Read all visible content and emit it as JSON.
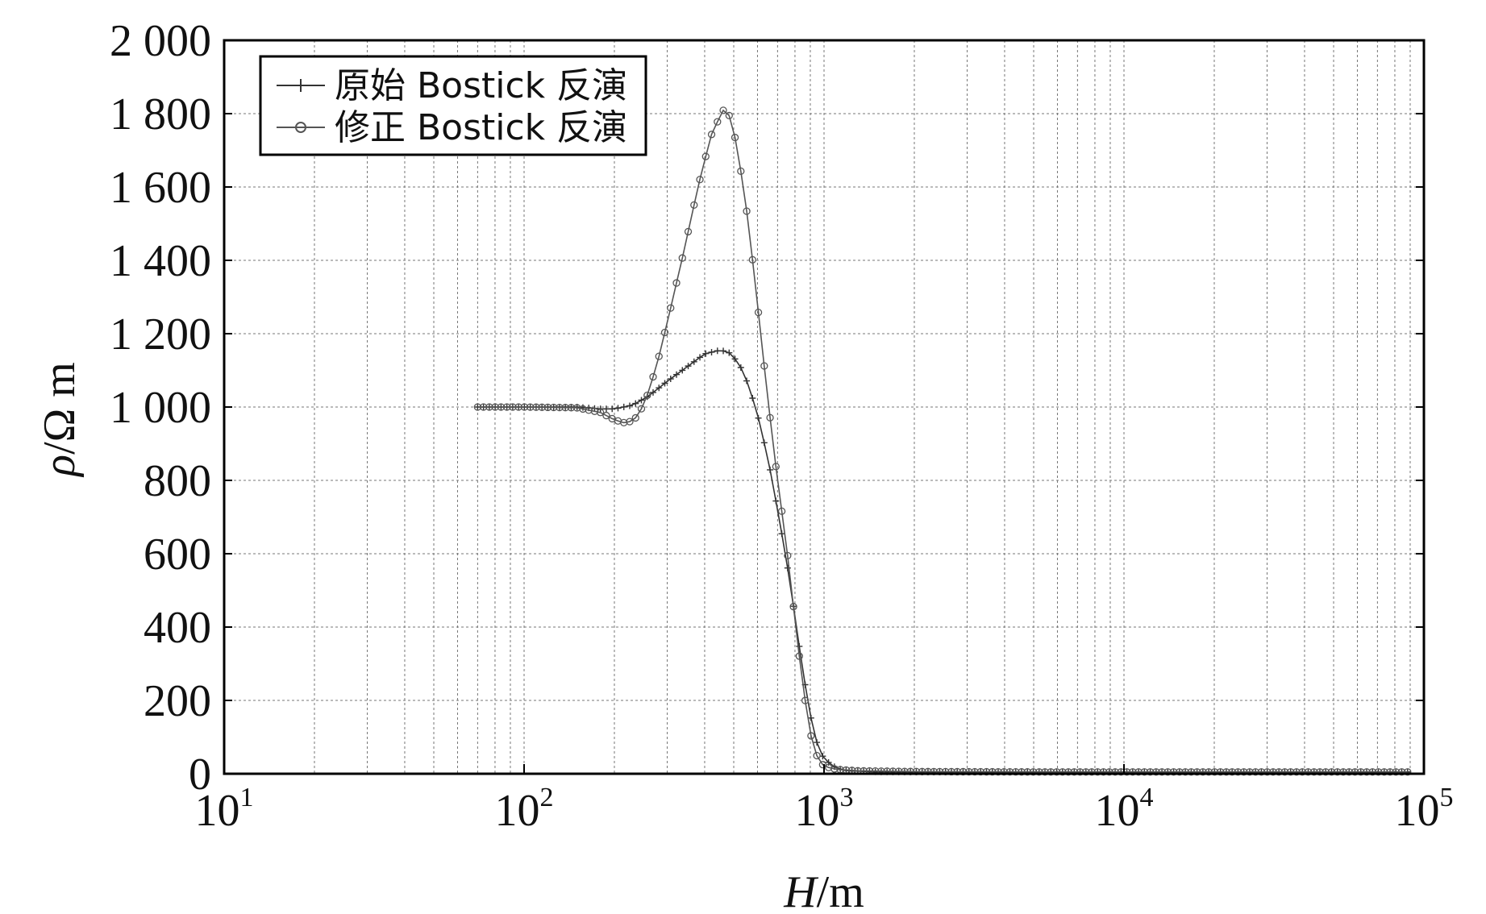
{
  "chart_data": {
    "type": "line",
    "xscale": "log",
    "xlim": [
      10,
      100000
    ],
    "ylim": [
      0,
      2000
    ],
    "grid": true,
    "legend_position": "top-left",
    "xlabel": {
      "italic": "H",
      "rest": "/m"
    },
    "ylabel": {
      "italic": "ρ",
      "rest": "/Ω m"
    },
    "xticks": [
      {
        "value": 10,
        "base": "10",
        "exp": "1"
      },
      {
        "value": 100,
        "base": "10",
        "exp": "2"
      },
      {
        "value": 1000,
        "base": "10",
        "exp": "3"
      },
      {
        "value": 10000,
        "base": "10",
        "exp": "4"
      },
      {
        "value": 100000,
        "base": "10",
        "exp": "5"
      }
    ],
    "yticks": [
      {
        "value": 0,
        "label": "0"
      },
      {
        "value": 200,
        "label": "200"
      },
      {
        "value": 400,
        "label": "400"
      },
      {
        "value": 600,
        "label": "600"
      },
      {
        "value": 800,
        "label": "800"
      },
      {
        "value": 1000,
        "label": "1 000"
      },
      {
        "value": 1200,
        "label": "1 200"
      },
      {
        "value": 1400,
        "label": "1 400"
      },
      {
        "value": 1600,
        "label": "1 600"
      },
      {
        "value": 1800,
        "label": "1 800"
      },
      {
        "value": 2000,
        "label": "2 000"
      }
    ],
    "series": [
      {
        "name": "原始 Bostick 反演",
        "marker": "plus",
        "color": "#333333",
        "x": [
          70,
          100,
          150,
          180,
          200,
          230,
          260,
          300,
          350,
          400,
          450,
          480,
          520,
          560,
          600,
          650,
          700,
          750,
          800,
          850,
          900,
          950,
          1000,
          1100,
          1200,
          1500,
          2000,
          5000,
          10000,
          50000,
          90000
        ],
        "y": [
          1000,
          1000,
          1000,
          995,
          995,
          1005,
          1030,
          1070,
          1110,
          1145,
          1155,
          1150,
          1120,
          1060,
          980,
          860,
          720,
          580,
          430,
          280,
          160,
          80,
          40,
          15,
          8,
          5,
          5,
          5,
          5,
          5,
          5
        ]
      },
      {
        "name": "修正 Bostick 反演",
        "marker": "circle",
        "color": "#555555",
        "x": [
          70,
          100,
          150,
          180,
          200,
          220,
          240,
          260,
          280,
          300,
          340,
          380,
          420,
          460,
          490,
          520,
          560,
          600,
          650,
          700,
          750,
          800,
          850,
          900,
          950,
          1000,
          1100,
          1300,
          2000,
          5000,
          10000,
          50000,
          90000
        ],
        "y": [
          1000,
          1000,
          998,
          985,
          965,
          955,
          975,
          1040,
          1130,
          1230,
          1420,
          1600,
          1740,
          1810,
          1790,
          1680,
          1500,
          1280,
          1020,
          800,
          620,
          420,
          240,
          110,
          45,
          20,
          12,
          8,
          6,
          5,
          5,
          5,
          5
        ]
      }
    ]
  }
}
